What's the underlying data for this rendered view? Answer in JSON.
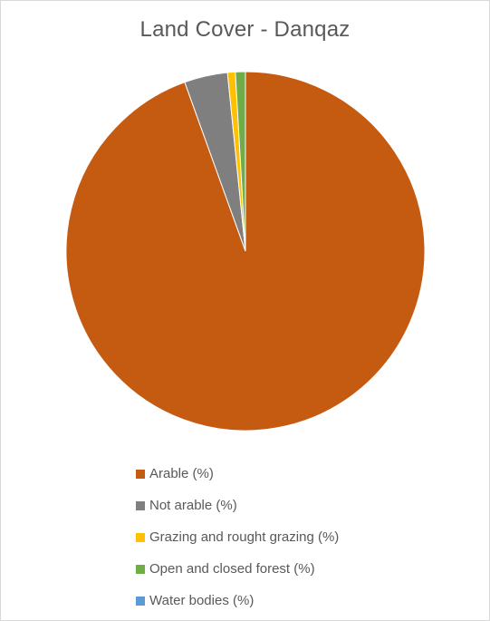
{
  "chart_data": {
    "type": "pie",
    "title": "Land Cover - Danqaz",
    "start_angle_deg": 0,
    "direction": "clockwise",
    "legend_position": "bottom",
    "slices": [
      {
        "label": "Arable (%)",
        "value": 94.5,
        "color": "#C55A11"
      },
      {
        "label": "Not arable (%)",
        "value": 3.9,
        "color": "#7F7F7F"
      },
      {
        "label": "Grazing and rought grazing (%)",
        "value": 0.7,
        "color": "#FFC000"
      },
      {
        "label": "Open and closed forest (%)",
        "value": 0.9,
        "color": "#70AD47"
      },
      {
        "label": "Water bodies (%)",
        "value": 0.0,
        "color": "#5B9BD5"
      }
    ]
  }
}
